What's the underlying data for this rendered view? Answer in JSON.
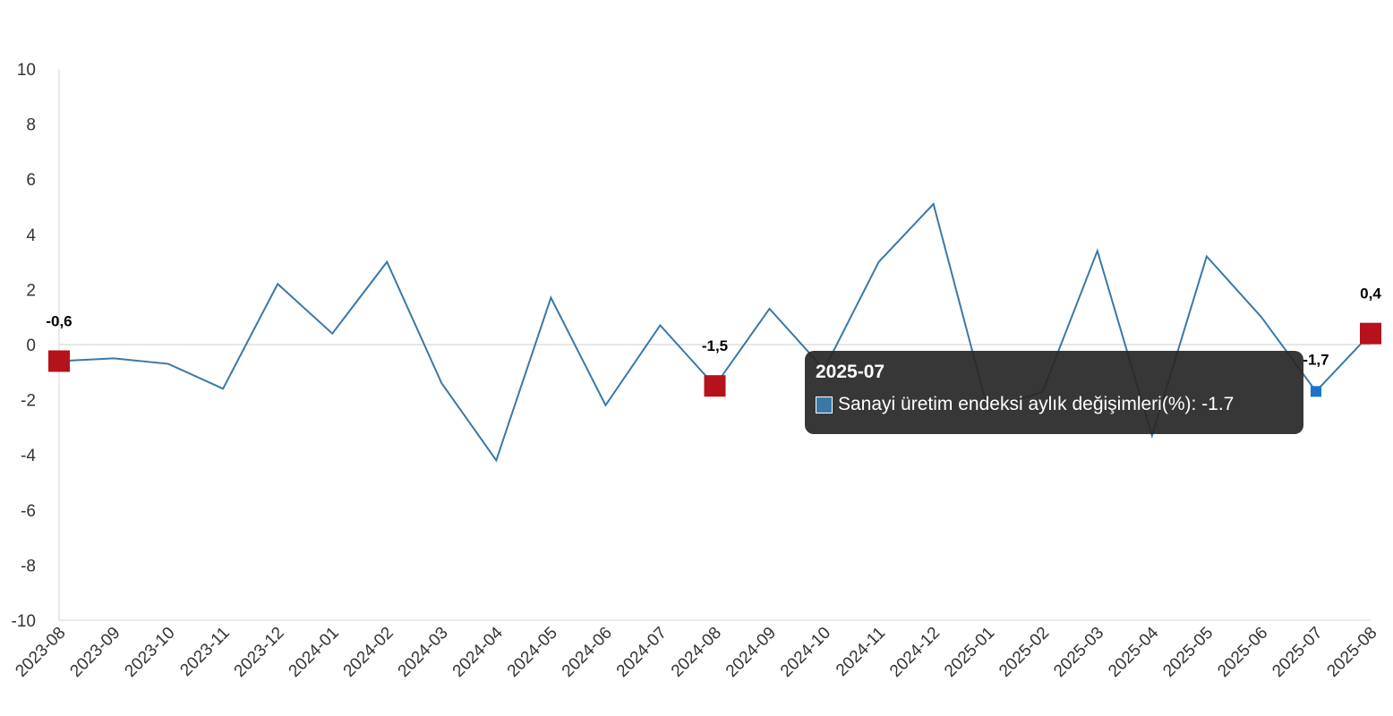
{
  "chart_data": {
    "type": "line",
    "categories": [
      "2023-08",
      "2023-09",
      "2023-10",
      "2023-11",
      "2023-12",
      "2024-01",
      "2024-02",
      "2024-03",
      "2024-04",
      "2024-05",
      "2024-06",
      "2024-07",
      "2024-08",
      "2024-09",
      "2024-10",
      "2024-11",
      "2024-12",
      "2025-01",
      "2025-02",
      "2025-03",
      "2025-04",
      "2025-05",
      "2025-06",
      "2025-07",
      "2025-08"
    ],
    "series": [
      {
        "name": "Sanayi üretim endeksi aylık değişimleri(%)",
        "values": [
          -0.6,
          -0.5,
          -0.7,
          -1.6,
          2.2,
          0.4,
          3.0,
          -1.4,
          -4.2,
          1.7,
          -2.2,
          0.7,
          -1.5,
          1.3,
          -0.9,
          3.0,
          5.1,
          -2.4,
          -1.7,
          3.4,
          -3.3,
          3.2,
          1.0,
          -1.7,
          0.4
        ],
        "color": "#3a78a8"
      }
    ],
    "ylim": [
      -10,
      10
    ],
    "yticks": [
      "10",
      "8",
      "6",
      "4",
      "2",
      "0",
      "-2",
      "-4",
      "-6",
      "-8",
      "-10"
    ],
    "ytick_values": [
      10,
      8,
      6,
      4,
      2,
      0,
      -2,
      -4,
      -6,
      -8,
      -10
    ],
    "data_labels": [
      {
        "index": 0,
        "text": "-0,6"
      },
      {
        "index": 12,
        "text": "-1,5"
      },
      {
        "index": 23,
        "text": "-1,7"
      },
      {
        "index": 24,
        "text": "0,4"
      }
    ],
    "highlight_marker_color": "#b5121b",
    "hover_marker_color": "#1a73c8",
    "grid": false,
    "zero_line": true
  },
  "tooltip": {
    "title": "2025-07",
    "label": "Sanayi üretim endeksi aylık değişimleri(%): -1.7",
    "swatch_color": "#3a78a8"
  }
}
